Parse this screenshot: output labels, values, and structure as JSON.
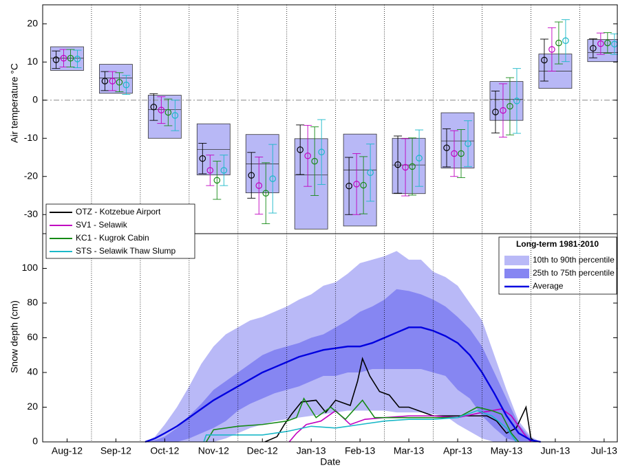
{
  "stations": [
    {
      "name": "OTZ - Kotzebue Airport",
      "color": "#000000"
    },
    {
      "name": "SV1 - Selawik",
      "color": "#c000c0"
    },
    {
      "name": "KC1 - Kugrok Cabin",
      "color": "#158a15"
    },
    {
      "name": "STS - Selawik Thaw Slump",
      "color": "#1ab8c8"
    }
  ],
  "chart_data": [
    {
      "type": "box-error",
      "ylabel": "Air temperature °C",
      "categories": [
        "Aug-12",
        "Sep-12",
        "Oct-12",
        "Nov-12",
        "Dec-12",
        "Jan-13",
        "Feb-13",
        "Mar-13",
        "Apr-13",
        "May-13",
        "Jun-13",
        "Jul-13"
      ],
      "ylim": [
        -35,
        25
      ],
      "yticks": [
        -30,
        -20,
        -10,
        0,
        10,
        20
      ],
      "reference_line": 0,
      "box_color": "#b8b8f6",
      "box_low": [
        7.8,
        1.8,
        -10,
        -19.6,
        -24.3,
        -33.8,
        -33,
        -24.5,
        -17.8,
        -5.3,
        3.1,
        10.1
      ],
      "box_high": [
        14,
        9.4,
        1.3,
        -6.2,
        -9,
        -10.1,
        -8.9,
        -10,
        -3.3,
        4.9,
        12.1,
        15.9
      ],
      "median": [
        11,
        5.8,
        -2.5,
        -12.9,
        -16.7,
        -19.6,
        -18.3,
        -17,
        -10.7,
        0.2,
        7.6,
        12.5
      ],
      "series": [
        {
          "values": [
            10.6,
            5.0,
            -1.8,
            -15.3,
            -19.7,
            -13,
            -22.5,
            -16.9,
            -12.5,
            -3.1,
            10.5,
            13.6
          ],
          "low": [
            8.3,
            2.5,
            -5.3,
            -19.3,
            -25.7,
            -19.5,
            -30,
            -24.4,
            -17.5,
            -8.6,
            5,
            11.1
          ],
          "high": [
            12.9,
            7.5,
            1.7,
            -11.3,
            -13.7,
            -6.5,
            -15,
            -9.4,
            -7.5,
            2.4,
            16,
            16.1
          ]
        },
        {
          "values": [
            11,
            5.0,
            -2.6,
            -18.4,
            -22.4,
            -14.6,
            -22,
            -17.6,
            -14,
            -2.7,
            13.3,
            14.8
          ],
          "low": [
            8.7,
            2.5,
            -6.1,
            -22.4,
            -29.9,
            -22.6,
            -30,
            -25.1,
            -20,
            -9.7,
            7.6,
            12
          ],
          "high": [
            13.3,
            7.5,
            0.9,
            -14.4,
            -14.9,
            -6.6,
            -14,
            -10.1,
            -8,
            4.3,
            19,
            17.6
          ]
        },
        {
          "values": [
            11,
            4.7,
            -3.2,
            -21,
            -24.4,
            -16,
            -22.3,
            -17.4,
            -14,
            -1.6,
            15,
            15
          ],
          "low": [
            8.7,
            2.2,
            -6.7,
            -26,
            -32.4,
            -25,
            -29.8,
            -24.9,
            -20.3,
            -9.1,
            9.5,
            12.3
          ],
          "high": [
            13.3,
            7.2,
            0.3,
            -16,
            -16.4,
            -7,
            -14.8,
            -9.9,
            -7.7,
            5.9,
            20.5,
            17.7
          ]
        },
        {
          "values": [
            10.8,
            4.0,
            -4.0,
            -18.4,
            -20.6,
            -13.6,
            -19,
            -15.2,
            -11.4,
            -0.2,
            15.6,
            14.7
          ],
          "low": [
            8.5,
            1.5,
            -8,
            -22.4,
            -29.6,
            -22.1,
            -26.5,
            -22.6,
            -17.4,
            -8.7,
            10.1,
            12
          ],
          "high": [
            13.1,
            6.5,
            0,
            -14.4,
            -11.6,
            -5.1,
            -11.5,
            -7.8,
            -5.4,
            8.3,
            21.1,
            17.4
          ]
        }
      ]
    },
    {
      "type": "snow",
      "ylabel": "Snow depth (cm)",
      "xlabel": "Date",
      "xlim": [
        0,
        11.77
      ],
      "ylim": [
        0,
        120
      ],
      "yticks": [
        0,
        20,
        40,
        60,
        80,
        100
      ],
      "legend_title": "Long-term 1981-2010",
      "x": [
        2.1,
        2.3,
        2.5,
        2.75,
        3.0,
        3.25,
        3.5,
        3.75,
        4.0,
        4.25,
        4.5,
        4.75,
        5.0,
        5.25,
        5.5,
        5.75,
        6.0,
        6.25,
        6.5,
        6.75,
        7.0,
        7.25,
        7.5,
        7.75,
        8.0,
        8.25,
        8.5,
        8.75,
        9.0,
        9.25,
        9.5,
        9.75,
        10.0,
        10.2
      ],
      "bands": [
        {
          "name": "10th to 90th percentile",
          "color": "#b9b9f7",
          "low": [
            0,
            0,
            0,
            0,
            0,
            0,
            0,
            2,
            5,
            8,
            10,
            12,
            13,
            14,
            15,
            16,
            17,
            18,
            18,
            18,
            18,
            17,
            17,
            17,
            16,
            15,
            10,
            6,
            2,
            0,
            0,
            0,
            0,
            0
          ],
          "high": [
            0,
            3,
            10,
            20,
            32,
            45,
            55,
            62,
            66,
            70,
            72,
            75,
            78,
            82,
            85,
            90,
            92,
            97,
            103,
            105,
            107,
            110,
            105,
            105,
            98,
            95,
            90,
            80,
            70,
            50,
            30,
            12,
            3,
            0
          ]
        },
        {
          "name": "25th to 75th percentile",
          "color": "#8686f2",
          "low": [
            0,
            0,
            0,
            0,
            2,
            5,
            8,
            12,
            18,
            22,
            25,
            28,
            30,
            32,
            35,
            38,
            38,
            40,
            40,
            42,
            42,
            42,
            42,
            42,
            40,
            38,
            30,
            25,
            15,
            8,
            2,
            0,
            0,
            0
          ],
          "high": [
            0,
            1,
            3,
            8,
            15,
            22,
            30,
            35,
            40,
            45,
            50,
            53,
            55,
            57,
            60,
            62,
            66,
            70,
            75,
            78,
            82,
            88,
            87,
            85,
            82,
            78,
            72,
            65,
            55,
            40,
            25,
            10,
            2,
            0
          ]
        }
      ],
      "average": {
        "name": "Average",
        "color": "#0000e0",
        "values": [
          0,
          2,
          5,
          9,
          14,
          19,
          24,
          28,
          32,
          36,
          40,
          43,
          46,
          49,
          51,
          53,
          54,
          55,
          55,
          57,
          60,
          63,
          66,
          66,
          64,
          61,
          57,
          50,
          40,
          28,
          15,
          5,
          1,
          0
        ]
      },
      "series": [
        {
          "x": [
            4.55,
            4.8,
            4.95,
            5.1,
            5.3,
            5.6,
            5.8,
            6.0,
            6.3,
            6.45,
            6.55,
            6.7,
            6.9,
            7.1,
            7.3,
            7.5,
            7.8,
            8.0,
            8.3,
            8.6,
            8.9,
            9.1,
            9.3,
            9.5,
            9.7,
            9.9,
            10.0,
            10.1
          ],
          "values": [
            0,
            3,
            10,
            16,
            23,
            24,
            17,
            24,
            21,
            35,
            48,
            38,
            29,
            27,
            20,
            20,
            17,
            15,
            15,
            15,
            15,
            15,
            12,
            5,
            8,
            20,
            2,
            0
          ]
        },
        {
          "x": [
            5.05,
            5.2,
            5.4,
            5.7,
            6.0,
            6.3,
            6.6,
            7.0,
            7.5,
            8.0,
            8.5,
            9.0,
            9.4,
            9.6,
            9.85,
            10.0
          ],
          "values": [
            0,
            5,
            10,
            12,
            18,
            10,
            13,
            14,
            15,
            15,
            14,
            17,
            19,
            15,
            5,
            0
          ]
        },
        {
          "x": [
            3.35,
            3.5,
            4.0,
            4.5,
            5.0,
            5.2,
            5.35,
            5.6,
            5.9,
            6.2,
            6.55,
            6.8,
            7.2,
            7.6,
            8.0,
            8.5,
            8.9,
            9.2,
            9.4,
            9.6,
            9.75
          ],
          "values": [
            0,
            7,
            9,
            10,
            12,
            14,
            25,
            14,
            20,
            13,
            24,
            14,
            14,
            14,
            14,
            14,
            20,
            18,
            16,
            5,
            0
          ]
        },
        {
          "x": [
            3.3,
            3.35,
            4.0,
            4.5,
            5.0,
            5.5,
            6.0,
            6.5,
            7.0,
            7.5,
            8.0,
            8.5,
            8.9,
            9.2,
            9.5,
            9.7
          ],
          "values": [
            0,
            4,
            4,
            4,
            6,
            9,
            8,
            10,
            12,
            13,
            13,
            14,
            18,
            15,
            8,
            0
          ]
        }
      ]
    }
  ]
}
